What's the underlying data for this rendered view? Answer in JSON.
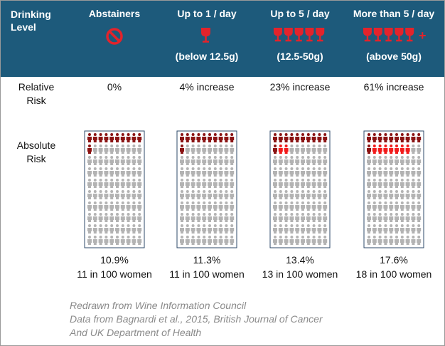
{
  "header": {
    "label": "Drinking Level"
  },
  "rows": {
    "relative": "Relative Risk",
    "absolute": "Absolute Risk"
  },
  "columns": [
    {
      "title": "Abstainers",
      "glasses": 0,
      "relative_risk": "0%",
      "percent": "10.9%",
      "count": "11 in 100 women",
      "baseline_icons": 11,
      "excess_icons": 0
    },
    {
      "title": "Up to 1 / day",
      "glasses": 1,
      "note": "(below 12.5g)",
      "relative_risk": "4% increase",
      "percent": "11.3%",
      "count": "11 in 100 women",
      "baseline_icons": 11,
      "excess_icons": 0
    },
    {
      "title": "Up to 5 / day",
      "glasses": 5,
      "note": "(12.5-50g)",
      "relative_risk": "23% increase",
      "percent": "13.4%",
      "count": "13 in 100 women",
      "baseline_icons": 11,
      "excess_icons": 2
    },
    {
      "title": "More than 5 / day",
      "glasses": 5,
      "plus": "+",
      "note": "(above 50g)",
      "relative_risk": "61% increase",
      "percent": "17.6%",
      "count": "18 in 100 women",
      "baseline_icons": 11,
      "excess_icons": 7
    }
  ],
  "total_icons": 100,
  "footer": [
    "Redrawn from Wine Information Council",
    "Data from Bagnardi et al., 2015, British Journal of Cancer",
    "And UK Department of Health"
  ]
}
